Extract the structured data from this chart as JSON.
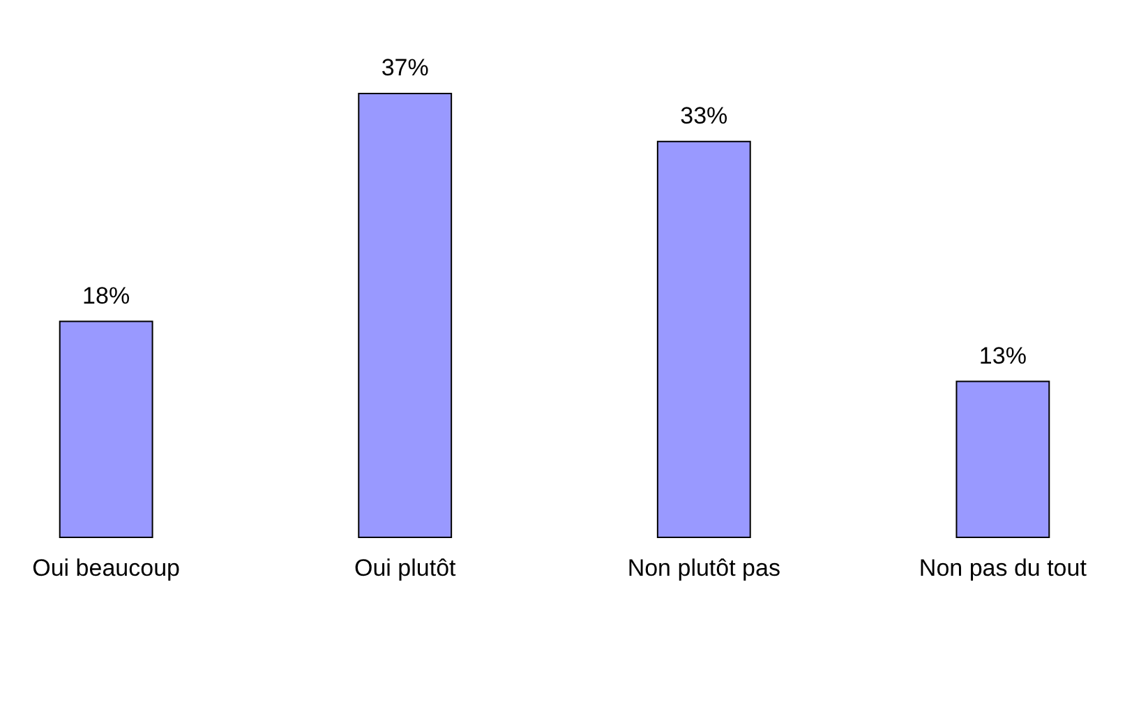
{
  "chart_data": {
    "type": "bar",
    "categories": [
      "Oui beaucoup",
      "Oui plutôt",
      "Non plutôt pas",
      "Non pas du tout"
    ],
    "values": [
      18,
      37,
      33,
      13
    ],
    "value_labels": [
      "18%",
      "37%",
      "33%",
      "13%"
    ],
    "color": "#9999ff"
  }
}
